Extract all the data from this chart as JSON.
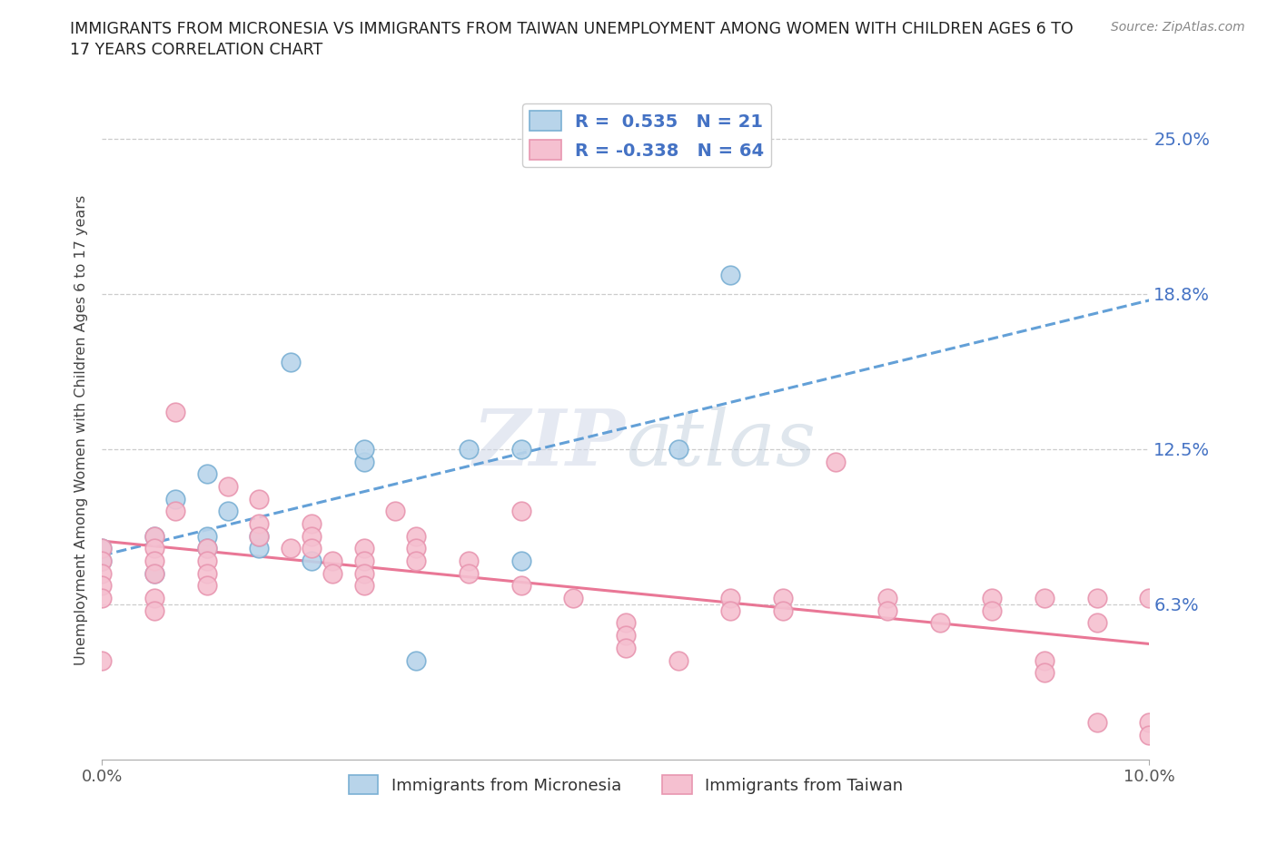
{
  "title_line1": "IMMIGRANTS FROM MICRONESIA VS IMMIGRANTS FROM TAIWAN UNEMPLOYMENT AMONG WOMEN WITH CHILDREN AGES 6 TO",
  "title_line2": "17 YEARS CORRELATION CHART",
  "source": "Source: ZipAtlas.com",
  "ylabel": "Unemployment Among Women with Children Ages 6 to 17 years",
  "watermark": "ZIPatlas",
  "xlim": [
    0.0,
    0.1
  ],
  "ylim": [
    0.0,
    0.265
  ],
  "yticks": [
    0.0625,
    0.125,
    0.1875,
    0.25
  ],
  "ytick_labels": [
    "6.3%",
    "12.5%",
    "18.8%",
    "25.0%"
  ],
  "micronesia_color": "#b8d4ea",
  "micronesia_edge": "#7ab0d4",
  "taiwan_color": "#f5c0d0",
  "taiwan_edge": "#e896b0",
  "line_micronesia_color": "#5b9bd5",
  "line_taiwan_color": "#e87090",
  "R_micronesia": 0.535,
  "N_micronesia": 21,
  "R_taiwan": -0.338,
  "N_taiwan": 64,
  "legend_label_micro": "Immigrants from Micronesia",
  "legend_label_taiwan": "Immigrants from Taiwan",
  "micronesia_x": [
    0.0,
    0.0,
    0.005,
    0.005,
    0.007,
    0.01,
    0.01,
    0.01,
    0.012,
    0.015,
    0.015,
    0.018,
    0.02,
    0.025,
    0.025,
    0.03,
    0.035,
    0.04,
    0.04,
    0.055,
    0.06
  ],
  "micronesia_y": [
    0.08,
    0.085,
    0.09,
    0.075,
    0.105,
    0.115,
    0.09,
    0.085,
    0.1,
    0.085,
    0.09,
    0.16,
    0.08,
    0.12,
    0.125,
    0.04,
    0.125,
    0.08,
    0.125,
    0.125,
    0.195
  ],
  "taiwan_x": [
    0.0,
    0.0,
    0.0,
    0.0,
    0.0,
    0.0,
    0.005,
    0.005,
    0.005,
    0.005,
    0.005,
    0.005,
    0.007,
    0.007,
    0.01,
    0.01,
    0.01,
    0.01,
    0.012,
    0.015,
    0.015,
    0.015,
    0.018,
    0.02,
    0.02,
    0.02,
    0.022,
    0.022,
    0.025,
    0.025,
    0.025,
    0.025,
    0.028,
    0.03,
    0.03,
    0.03,
    0.035,
    0.035,
    0.04,
    0.04,
    0.045,
    0.05,
    0.05,
    0.05,
    0.055,
    0.06,
    0.06,
    0.065,
    0.065,
    0.07,
    0.075,
    0.075,
    0.08,
    0.085,
    0.085,
    0.09,
    0.09,
    0.09,
    0.095,
    0.095,
    0.095,
    0.1,
    0.1,
    0.1
  ],
  "taiwan_y": [
    0.085,
    0.08,
    0.075,
    0.07,
    0.065,
    0.04,
    0.09,
    0.085,
    0.08,
    0.075,
    0.065,
    0.06,
    0.14,
    0.1,
    0.085,
    0.08,
    0.075,
    0.07,
    0.11,
    0.105,
    0.095,
    0.09,
    0.085,
    0.095,
    0.09,
    0.085,
    0.08,
    0.075,
    0.085,
    0.08,
    0.075,
    0.07,
    0.1,
    0.09,
    0.085,
    0.08,
    0.08,
    0.075,
    0.07,
    0.1,
    0.065,
    0.055,
    0.05,
    0.045,
    0.04,
    0.065,
    0.06,
    0.065,
    0.06,
    0.12,
    0.065,
    0.06,
    0.055,
    0.065,
    0.06,
    0.065,
    0.04,
    0.035,
    0.065,
    0.055,
    0.015,
    0.065,
    0.015,
    0.01
  ]
}
